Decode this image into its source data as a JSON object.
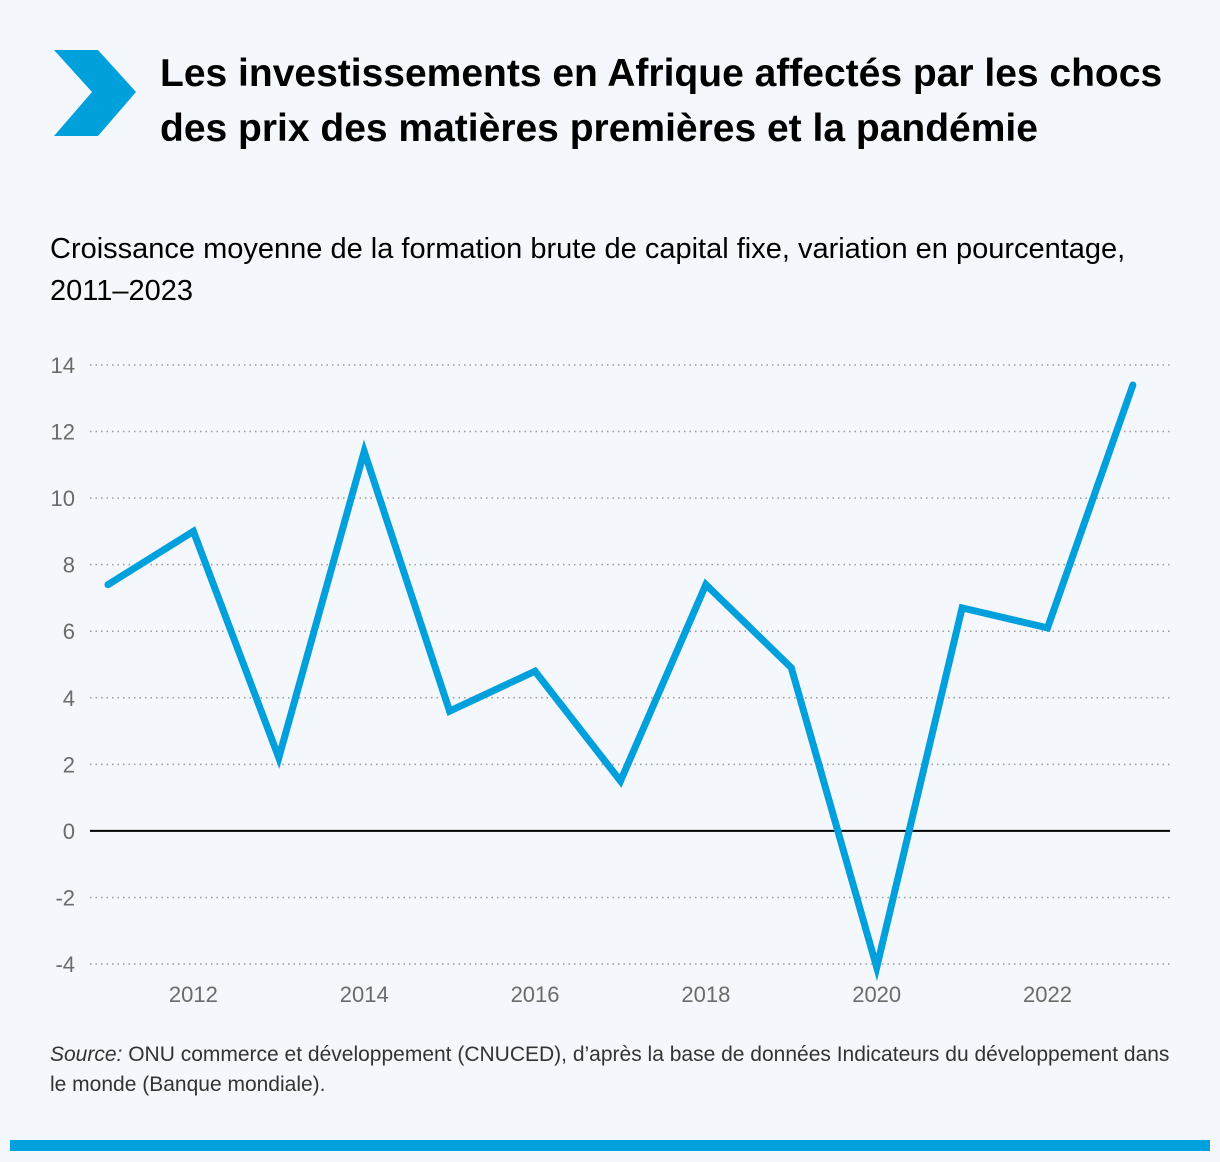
{
  "header": {
    "title": "Les investissements en Afrique affectés par les chocs des prix des matières premières et la pandémie",
    "subtitle": "Croissance moyenne de la formation brute de capital fixe, variation en pourcentage, 2011–2023",
    "icon": "chevron-right-icon"
  },
  "footer": {
    "source_label": "Source:",
    "source_text": " ONU commerce et développement (CNUCED), d’après la base de données Indicateurs du développement dans le monde (Banque mondiale)."
  },
  "colors": {
    "accent": "#00a0dc",
    "background": "#f4f8fc",
    "grid": "#9a9a9a",
    "axis_zero": "#000000",
    "tick_text": "#6b6b6b"
  },
  "chart_data": {
    "type": "line",
    "title": "Les investissements en Afrique affectés par les chocs des prix des matières premières et la pandémie",
    "subtitle": "Croissance moyenne de la formation brute de capital fixe, variation en pourcentage, 2011–2023",
    "xlabel": "",
    "ylabel": "",
    "x": [
      2011,
      2012,
      2013,
      2014,
      2015,
      2016,
      2017,
      2018,
      2019,
      2020,
      2021,
      2022,
      2023
    ],
    "series": [
      {
        "name": "Croissance de la formation brute de capital fixe",
        "values": [
          7.4,
          9.0,
          2.2,
          11.4,
          3.6,
          4.8,
          1.5,
          7.4,
          4.9,
          -4.1,
          6.7,
          6.1,
          13.4
        ]
      }
    ],
    "xlim": [
      2011,
      2023.2
    ],
    "ylim": [
      -4,
      14
    ],
    "yticks": [
      14,
      12,
      10,
      8,
      6,
      4,
      2,
      0,
      -2,
      -4
    ],
    "ytick_labels": [
      "14",
      "12",
      "10",
      "8",
      "6",
      "4",
      "2",
      "0",
      "-2",
      "-4"
    ],
    "xticks": [
      2012,
      2014,
      2016,
      2018,
      2020,
      2022
    ],
    "xtick_labels": [
      "2012",
      "2014",
      "2016",
      "2018",
      "2020",
      "2022"
    ],
    "grid": "horizontal dotted",
    "legend": "none"
  }
}
